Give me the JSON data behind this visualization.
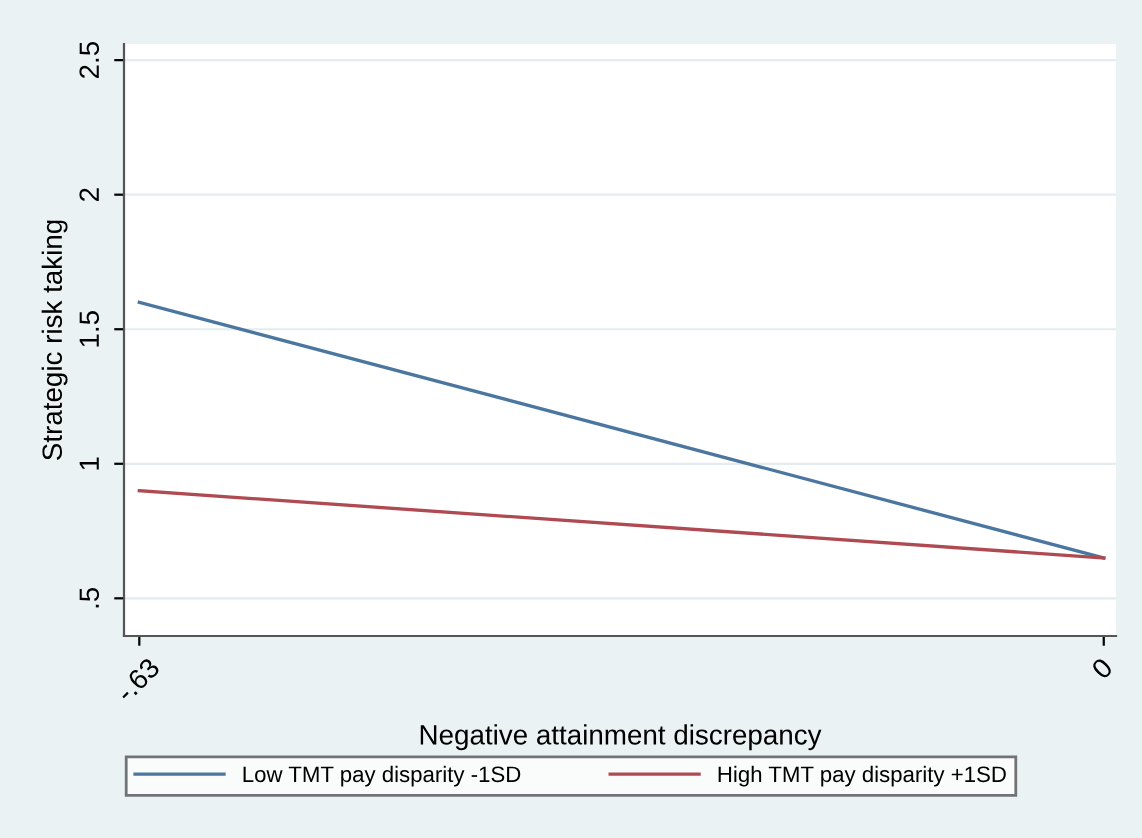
{
  "chart_data": {
    "type": "line",
    "xlabel": "Negative attainment discrepancy",
    "ylabel": "Strategic risk taking",
    "x": [
      -0.63,
      0
    ],
    "series": [
      {
        "name": "Low TMT pay disparity -1SD",
        "color": "#4a76a0",
        "values": [
          1.6,
          0.65
        ]
      },
      {
        "name": "High TMT pay disparity +1SD",
        "color": "#b04a52",
        "values": [
          0.9,
          0.65
        ]
      }
    ],
    "xlim": [
      -0.64,
      0.008
    ],
    "xticks": [
      {
        "value": -0.63,
        "label": "-.63"
      },
      0
    ],
    "ylim": [
      0.36,
      2.56
    ],
    "yticks": [
      {
        "value": 0.5,
        "label": ".5"
      },
      1,
      1.5,
      2,
      2.5
    ],
    "grid": "y",
    "legend": "bottom",
    "marker": "none",
    "line_style": "solid"
  }
}
